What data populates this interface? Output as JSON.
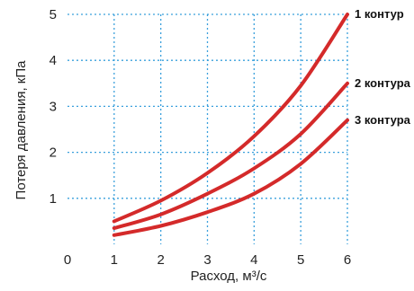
{
  "chart_data": {
    "type": "line",
    "xlabel": "Расход, м³/с",
    "ylabel": "Потеря давления, кПа",
    "xlim": [
      0,
      6
    ],
    "ylim": [
      0,
      5
    ],
    "x_ticks": [
      "0",
      "1",
      "2",
      "3",
      "4",
      "5",
      "6"
    ],
    "y_ticks": [
      "1",
      "2",
      "3",
      "4",
      "5"
    ],
    "grid": true,
    "series_color": "#d42a2a",
    "grid_color": "#3aa0dc",
    "x": [
      1,
      2,
      3,
      4,
      5,
      6
    ],
    "series": [
      {
        "name": "1 контур",
        "values": [
          0.5,
          0.95,
          1.55,
          2.35,
          3.45,
          5.0
        ]
      },
      {
        "name": "2 контура",
        "values": [
          0.35,
          0.65,
          1.1,
          1.65,
          2.4,
          3.5
        ]
      },
      {
        "name": "3 контура",
        "values": [
          0.2,
          0.4,
          0.7,
          1.1,
          1.75,
          2.7
        ]
      }
    ]
  }
}
